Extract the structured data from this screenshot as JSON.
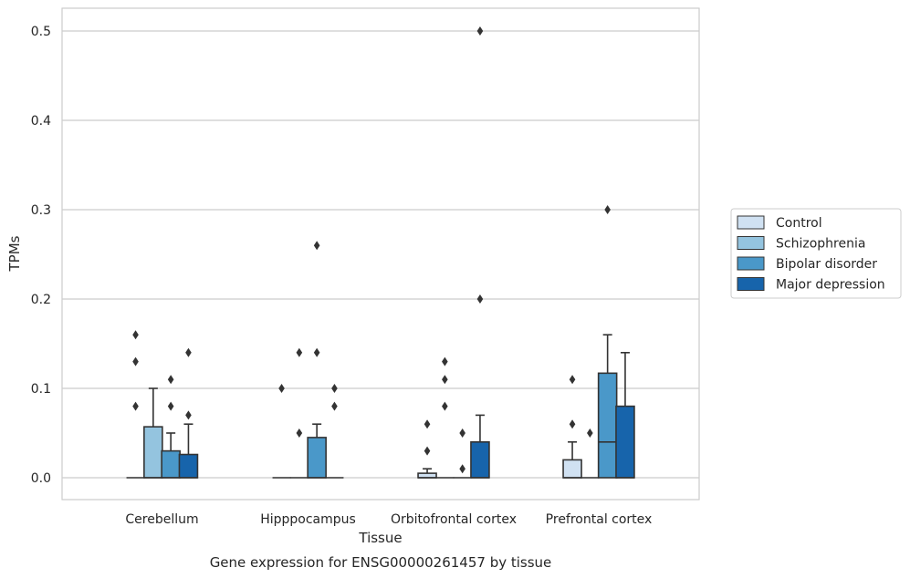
{
  "chart_data": {
    "type": "box",
    "caption": "Gene expression for ENSG00000261457 by tissue",
    "xlabel": "Tissue",
    "ylabel": "TPMs",
    "ylim": [
      -0.025,
      0.525
    ],
    "yticks": [
      0.0,
      0.1,
      0.2,
      0.3,
      0.4,
      0.5
    ],
    "ytick_labels": [
      "0.0",
      "0.1",
      "0.2",
      "0.3",
      "0.4",
      "0.5"
    ],
    "grid": "horizontal",
    "legend_position": "right",
    "categories": [
      "Cerebellum",
      "Hipppocampus",
      "Orbitofrontal cortex",
      "Prefrontal cortex"
    ],
    "series": [
      {
        "name": "Control",
        "color": "#d0e1f2",
        "boxes": [
          {
            "q1": 0,
            "median": 0,
            "q3": 0,
            "whisker_low": 0,
            "whisker_high": 0,
            "outliers": [
              0.08,
              0.13,
              0.16
            ]
          },
          {
            "q1": 0,
            "median": 0,
            "q3": 0,
            "whisker_low": 0,
            "whisker_high": 0,
            "outliers": [
              0.1
            ]
          },
          {
            "q1": 0,
            "median": 0,
            "q3": 0.005,
            "whisker_low": 0,
            "whisker_high": 0.01,
            "outliers": [
              0.03,
              0.06
            ]
          },
          {
            "q1": 0,
            "median": 0,
            "q3": 0.02,
            "whisker_low": 0,
            "whisker_high": 0.04,
            "outliers": [
              0.06,
              0.11
            ]
          }
        ]
      },
      {
        "name": "Schizophrenia",
        "color": "#94c4df",
        "boxes": [
          {
            "q1": 0,
            "median": 0,
            "q3": 0.057,
            "whisker_low": 0,
            "whisker_high": 0.1,
            "outliers": []
          },
          {
            "q1": 0,
            "median": 0,
            "q3": 0,
            "whisker_low": 0,
            "whisker_high": 0,
            "outliers": [
              0.05,
              0.14
            ]
          },
          {
            "q1": 0,
            "median": 0,
            "q3": 0,
            "whisker_low": 0,
            "whisker_high": 0,
            "outliers": [
              0.08,
              0.11,
              0.13
            ]
          },
          {
            "q1": 0,
            "median": 0,
            "q3": 0,
            "whisker_low": 0,
            "whisker_high": 0,
            "outliers": [
              0.05
            ]
          }
        ]
      },
      {
        "name": "Bipolar disorder",
        "color": "#4a98c9",
        "boxes": [
          {
            "q1": 0,
            "median": 0,
            "q3": 0.03,
            "whisker_low": 0,
            "whisker_high": 0.05,
            "outliers": [
              0.08,
              0.11
            ]
          },
          {
            "q1": 0,
            "median": 0,
            "q3": 0.045,
            "whisker_low": 0,
            "whisker_high": 0.06,
            "outliers": [
              0.14,
              0.26
            ]
          },
          {
            "q1": 0,
            "median": 0,
            "q3": 0,
            "whisker_low": 0,
            "whisker_high": 0,
            "outliers": [
              0.01,
              0.05
            ]
          },
          {
            "q1": 0,
            "median": 0.04,
            "q3": 0.117,
            "whisker_low": 0,
            "whisker_high": 0.16,
            "outliers": [
              0.3
            ]
          }
        ]
      },
      {
        "name": "Major depression",
        "color": "#1764ab",
        "boxes": [
          {
            "q1": 0,
            "median": 0,
            "q3": 0.026,
            "whisker_low": 0,
            "whisker_high": 0.06,
            "outliers": [
              0.07,
              0.14
            ]
          },
          {
            "q1": 0,
            "median": 0,
            "q3": 0,
            "whisker_low": 0,
            "whisker_high": 0,
            "outliers": [
              0.08,
              0.1
            ]
          },
          {
            "q1": 0,
            "median": 0,
            "q3": 0.04,
            "whisker_low": 0,
            "whisker_high": 0.07,
            "outliers": [
              0.2,
              0.5
            ]
          },
          {
            "q1": 0,
            "median": 0,
            "q3": 0.08,
            "whisker_low": 0,
            "whisker_high": 0.14,
            "outliers": []
          }
        ]
      }
    ]
  }
}
